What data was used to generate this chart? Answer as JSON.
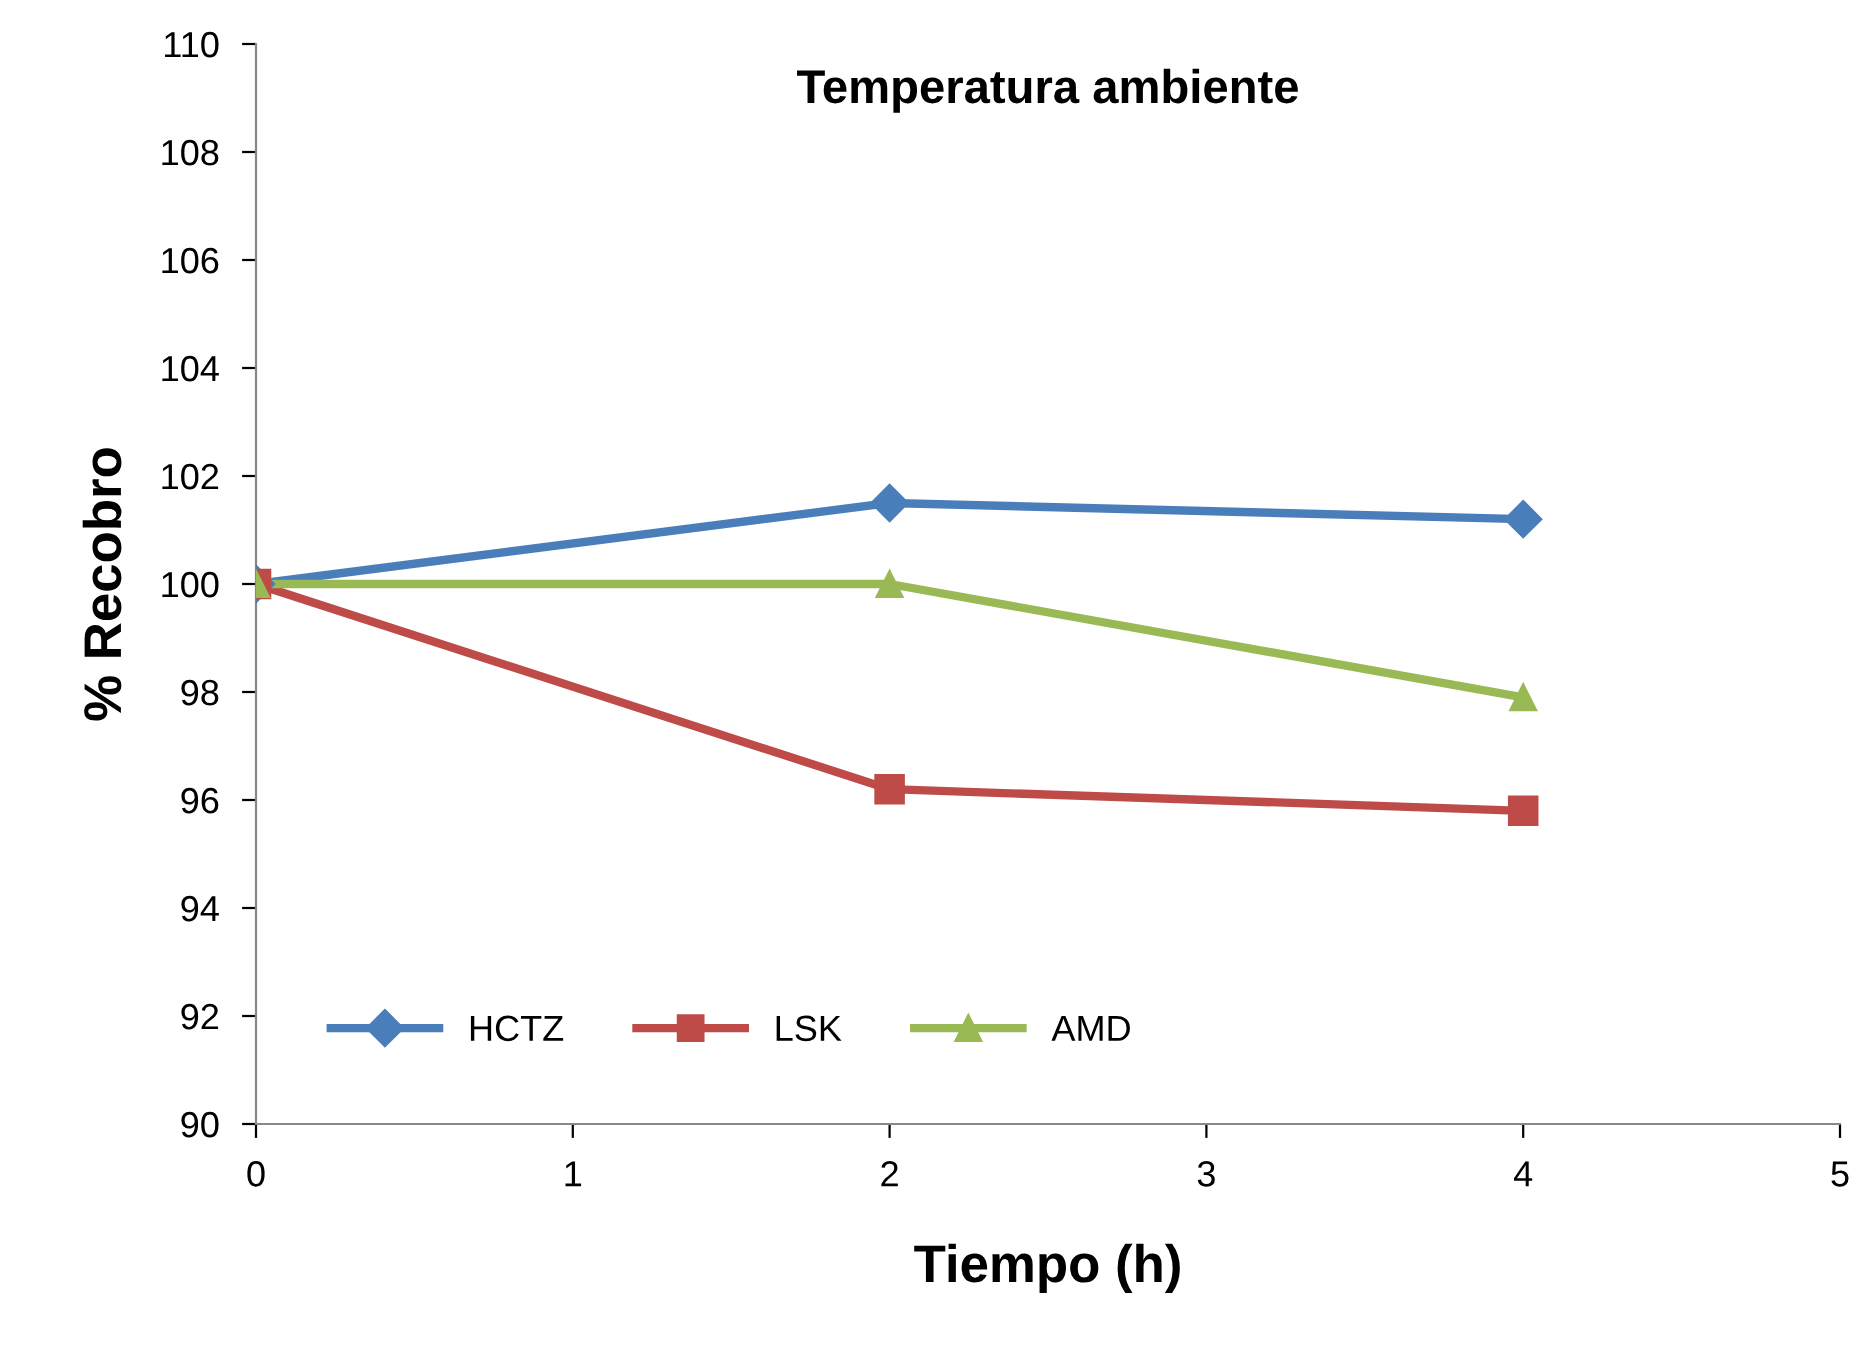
{
  "chart_data": {
    "type": "line",
    "title": "Temperatura ambiente",
    "xlabel": "Tiempo (h)",
    "ylabel": "% Recobro",
    "x": [
      0,
      2,
      4
    ],
    "series": [
      {
        "name": "HCTZ",
        "color": "#4a7ebb",
        "marker": "diamond",
        "values": [
          100,
          101.5,
          101.2
        ]
      },
      {
        "name": "LSK",
        "color": "#be4b48",
        "marker": "square",
        "values": [
          100,
          96.2,
          95.8
        ]
      },
      {
        "name": "AMD",
        "color": "#98b954",
        "marker": "triangle",
        "values": [
          100,
          100,
          97.9
        ]
      }
    ],
    "xlim": [
      0,
      5
    ],
    "xticks": [
      0,
      1,
      2,
      3,
      4,
      5
    ],
    "ylim": [
      90,
      110
    ],
    "yticks": [
      90,
      92,
      94,
      96,
      98,
      100,
      102,
      104,
      106,
      108,
      110
    ],
    "grid": false,
    "legend": "bottom",
    "line_style": "solid"
  }
}
